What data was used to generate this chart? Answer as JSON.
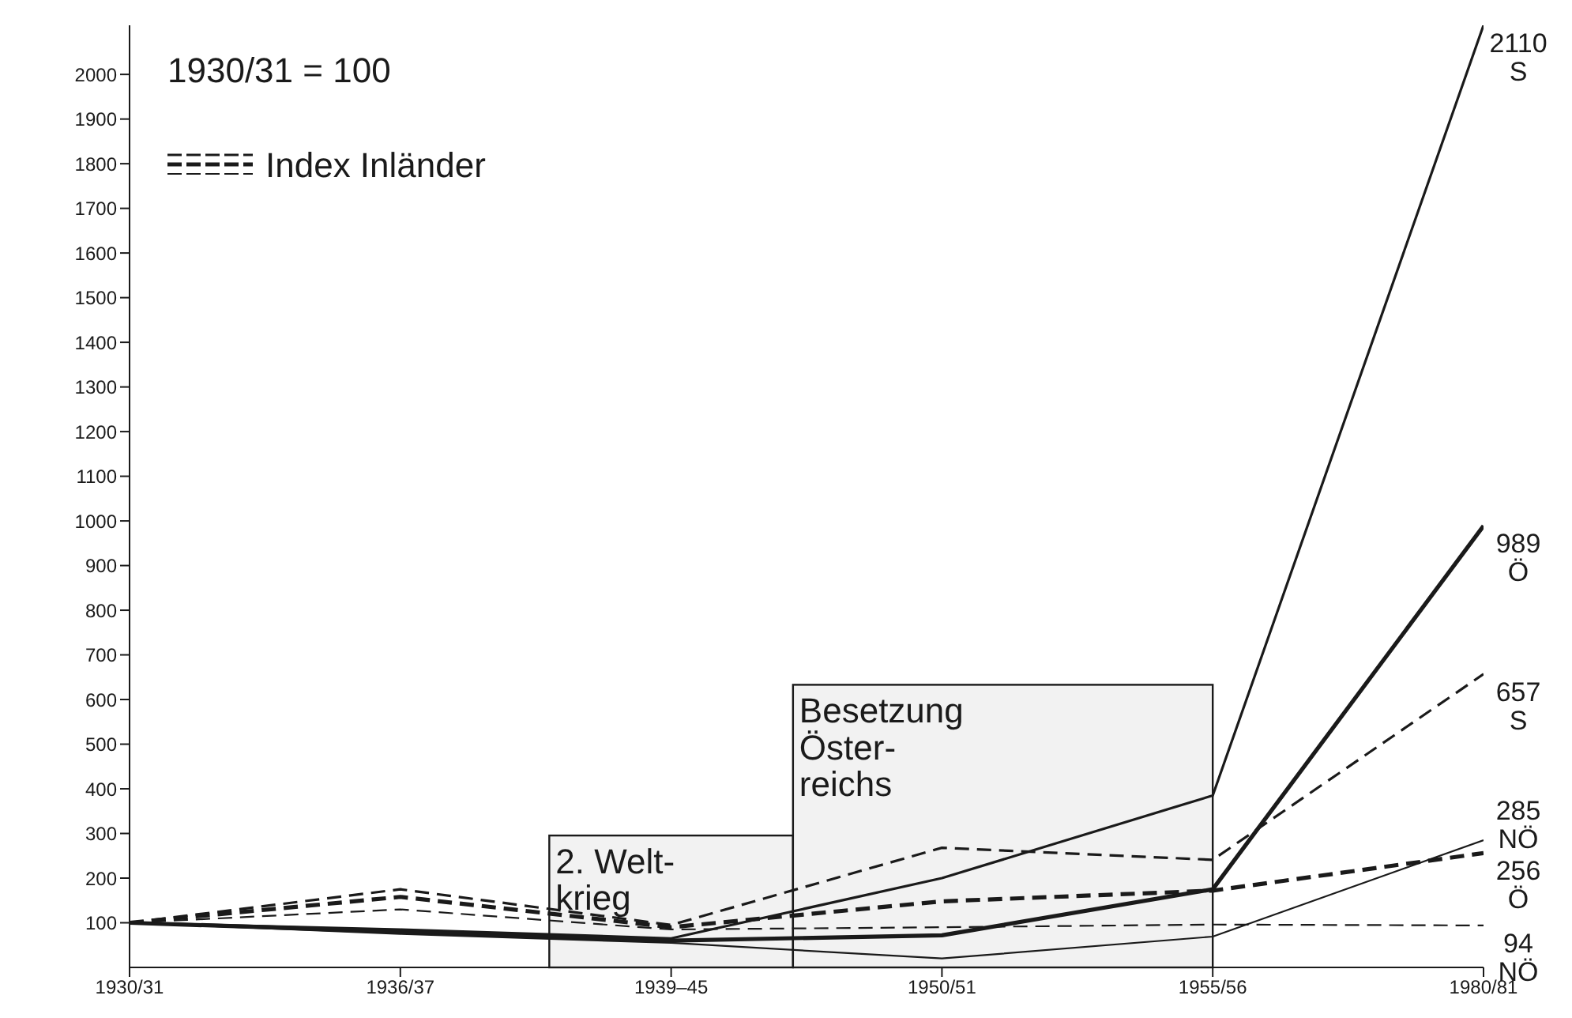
{
  "chart_data": {
    "type": "line",
    "annotations": [
      "1930/31 = 100"
    ],
    "legend_title": "Index Inländer",
    "marker": "none",
    "categories": [
      "1930/31",
      "1936/37",
      "1939–45",
      "1950/51",
      "1955/56",
      "1980/81"
    ],
    "ylim": [
      0,
      2110
    ],
    "yticks": [
      100,
      200,
      300,
      400,
      500,
      600,
      700,
      800,
      900,
      1000,
      1100,
      1200,
      1300,
      1400,
      1500,
      1600,
      1700,
      1800,
      1900,
      2000
    ],
    "bands": [
      {
        "axis": "x",
        "from": "1939–45",
        "to": "1939–45",
        "label": "2. Welt-\nkrieg",
        "color": "#f2f2f2"
      },
      {
        "axis": "x",
        "from": "1950/51",
        "to": "1955/56",
        "label": "Besetzung\nÖster-\nreichs",
        "color": "#f2f2f2"
      }
    ],
    "series": [
      {
        "name": "S",
        "color": "#1a1a1a",
        "line_style": "solid",
        "values": [
          100,
          85,
          65,
          200,
          385,
          2110
        ],
        "value_labels": [
          null,
          null,
          null,
          null,
          null,
          "2110"
        ]
      },
      {
        "name": "Ö",
        "color": "#1a1a1a",
        "line_style": "solid",
        "values": [
          100,
          80,
          60,
          72,
          175,
          989
        ],
        "value_labels": [
          null,
          null,
          null,
          null,
          null,
          "989"
        ]
      },
      {
        "name": "NÖ",
        "color": "#1a1a1a",
        "line_style": "solid",
        "values": [
          100,
          75,
          55,
          20,
          69,
          285
        ],
        "value_labels": [
          null,
          null,
          null,
          null,
          null,
          "285"
        ]
      },
      {
        "name": "S",
        "color": "#1a1a1a",
        "line_style": "dashed",
        "values": [
          100,
          175,
          95,
          268,
          241,
          657
        ],
        "value_labels": [
          null,
          null,
          null,
          null,
          null,
          "657"
        ]
      },
      {
        "name": "Ö",
        "color": "#1a1a1a",
        "line_style": "dashed",
        "values": [
          100,
          158,
          90,
          148,
          172,
          256
        ],
        "value_labels": [
          null,
          null,
          null,
          null,
          null,
          "256"
        ]
      },
      {
        "name": "NÖ",
        "color": "#1a1a1a",
        "line_style": "dashed",
        "values": [
          100,
          130,
          85,
          90,
          96,
          94
        ],
        "value_labels": [
          null,
          null,
          null,
          null,
          null,
          "94"
        ]
      }
    ]
  }
}
